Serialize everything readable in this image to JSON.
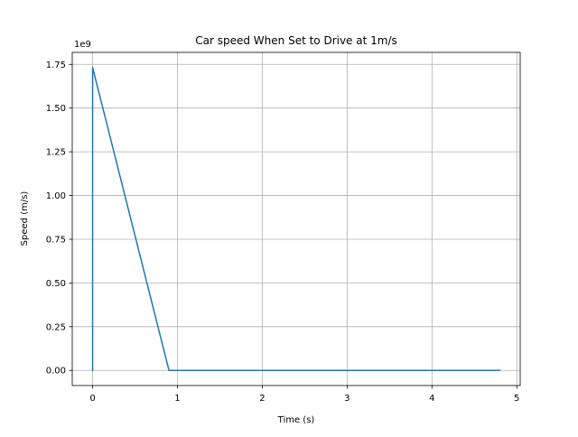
{
  "chart_data": {
    "type": "line",
    "title": "Car speed When Set to Drive at 1m/s",
    "xlabel": "Time (s)",
    "ylabel": "Speed (m/s)",
    "y_multiplier_label": "1e9",
    "xlim": [
      -0.24,
      5.04
    ],
    "ylim": [
      -0.0866,
      1.8186
    ],
    "grid": true,
    "line_color": "#1f77b4",
    "x_ticks": [
      0,
      1,
      2,
      3,
      4,
      5
    ],
    "x_tick_labels": [
      "0",
      "1",
      "2",
      "3",
      "4",
      "5"
    ],
    "y_ticks": [
      0.0,
      0.25,
      0.5,
      0.75,
      1.0,
      1.25,
      1.5,
      1.75
    ],
    "y_tick_labels": [
      "0.00",
      "0.25",
      "0.50",
      "0.75",
      "1.00",
      "1.25",
      "1.50",
      "1.75"
    ],
    "series": [
      {
        "x": [
          0.0,
          0.0,
          0.9,
          4.8
        ],
        "y": [
          0.0,
          1.732,
          0.0,
          0.0
        ]
      }
    ]
  }
}
